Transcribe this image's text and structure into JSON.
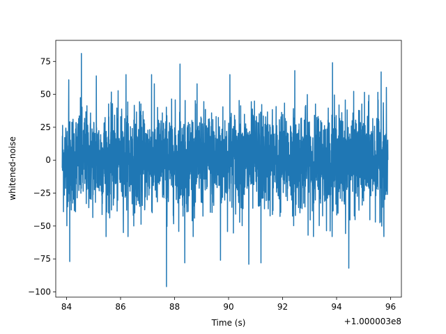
{
  "chart_data": {
    "type": "line",
    "title": "",
    "xlabel": "Time (s)",
    "ylabel": "whitened-noise",
    "x_offset_label": "+1.000003e8",
    "x_offset": 100000300,
    "xlim": [
      83.6,
      96.4
    ],
    "ylim": [
      -104,
      91
    ],
    "x_range": [
      83.84,
      95.9
    ],
    "x_ticks": [
      84,
      86,
      88,
      90,
      92,
      94,
      96
    ],
    "y_ticks": [
      75,
      50,
      25,
      0,
      -25,
      -50,
      -75,
      -100
    ],
    "x_tick_labels": [
      "84",
      "86",
      "88",
      "90",
      "92",
      "94",
      "96"
    ],
    "y_tick_labels": [
      "75",
      "50",
      "25",
      "0",
      "−25",
      "−50",
      "−75",
      "−100"
    ],
    "grid": false,
    "legend": "none",
    "color": "#1f77b4",
    "series": [
      {
        "peaks": [
          {
            "x": 84.55,
            "y": 81
          },
          {
            "x": 84.08,
            "y": 61
          },
          {
            "x": 85.1,
            "y": 64
          },
          {
            "x": 86.2,
            "y": 65
          },
          {
            "x": 87.15,
            "y": 65
          },
          {
            "x": 88.2,
            "y": 73
          },
          {
            "x": 90.05,
            "y": 65
          },
          {
            "x": 91.2,
            "y": 67
          },
          {
            "x": 92.45,
            "y": 68
          },
          {
            "x": 93.85,
            "y": 74
          },
          {
            "x": 95.65,
            "y": 67
          },
          {
            "x": 87.7,
            "y": -96
          },
          {
            "x": 84.12,
            "y": -77
          },
          {
            "x": 88.38,
            "y": -78
          },
          {
            "x": 89.7,
            "y": -76
          },
          {
            "x": 90.75,
            "y": -79
          },
          {
            "x": 91.2,
            "y": -78
          },
          {
            "x": 94.45,
            "y": -82
          },
          {
            "x": 95.75,
            "y": -58
          }
        ]
      }
    ]
  }
}
